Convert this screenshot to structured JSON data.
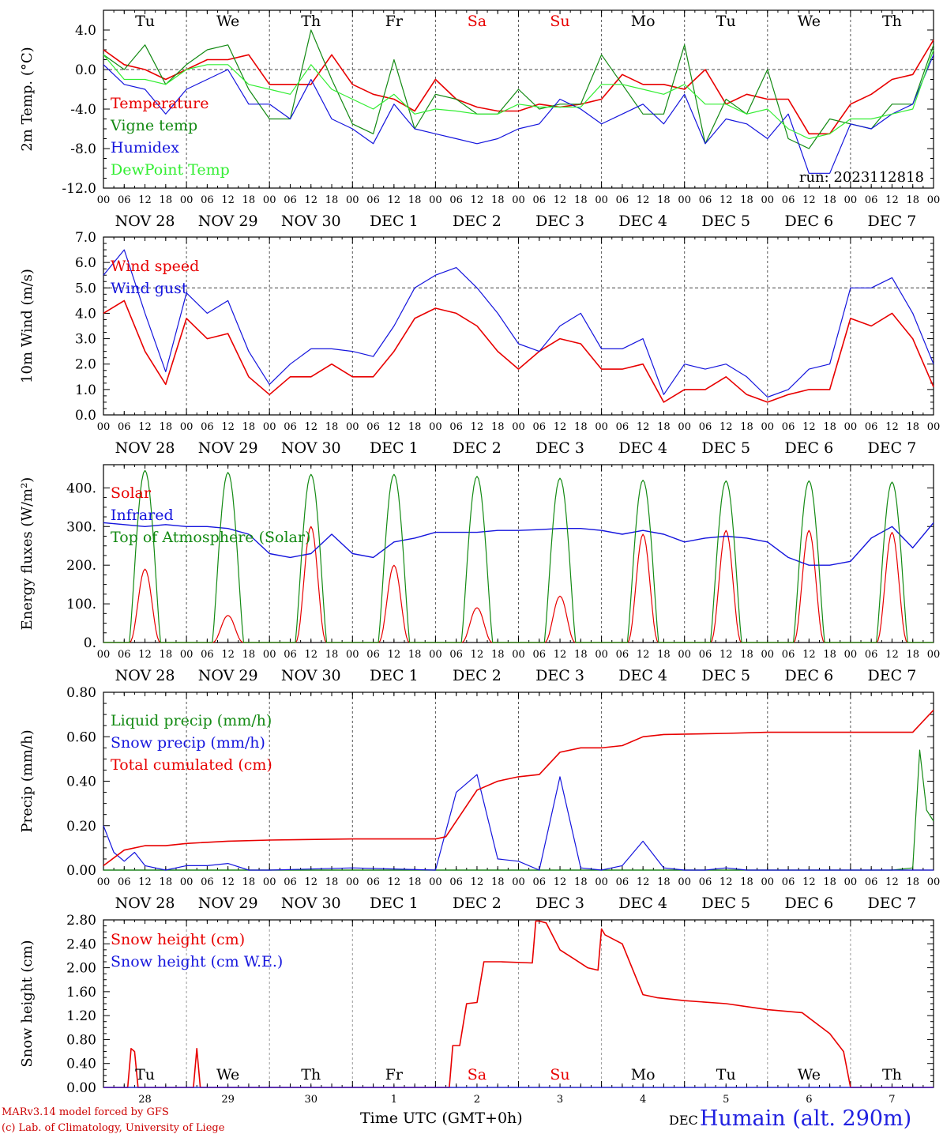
{
  "days_top": [
    "Tu",
    "We",
    "Th",
    "Fr",
    "Sa",
    "Su",
    "Mo",
    "Tu",
    "We",
    "Th"
  ],
  "weekend_days": [
    "Sa",
    "Su"
  ],
  "date_labels": [
    "NOV 28",
    "NOV 29",
    "NOV 30",
    "DEC  1",
    "DEC  2",
    "DEC  3",
    "DEC  4",
    "DEC  5",
    "DEC  6",
    "DEC  7"
  ],
  "hour_labels": [
    "00",
    "06",
    "12",
    "18"
  ],
  "hour_end_label": "00",
  "bottom_day_numbers": [
    "28",
    "29",
    "30",
    "1",
    "2",
    "3",
    "4",
    "5",
    "6",
    "7"
  ],
  "colors": {
    "red": "#e80000",
    "green": "#138a13",
    "blue": "#1515dd",
    "lightgreen": "#33ee33",
    "axis": "#000000"
  },
  "footer": {
    "model": "MARv3.14 model forced by GFS",
    "credit": "(c) Lab. of Climatology, University of Liege",
    "time_label": "Time UTC (GMT+0h)",
    "month": "DEC",
    "station": "Humain (alt. 290m)"
  },
  "chart_data": [
    {
      "type": "line",
      "ylabel": "2m Temp. (°C)",
      "ylim": [
        -12,
        6
      ],
      "yticks": [
        "4.0",
        "0.0",
        "-4.0",
        "-8.0",
        "-12.0"
      ],
      "ytick_values": [
        4,
        0,
        -4,
        -8,
        -12
      ],
      "ref_line": 0,
      "annotation": "run: 2023112818",
      "x_hours": [
        0,
        6,
        12,
        18,
        24,
        30,
        36,
        42,
        48,
        54,
        60,
        66,
        72,
        78,
        84,
        90,
        96,
        102,
        108,
        114,
        120,
        126,
        132,
        138,
        144,
        150,
        156,
        162,
        168,
        174,
        180,
        186,
        192,
        198,
        204,
        210,
        216,
        222,
        228,
        234,
        240
      ],
      "series": [
        {
          "name": "Temperature",
          "color": "red",
          "values": [
            2.0,
            0.5,
            0.0,
            -1.0,
            0.0,
            1.0,
            1.0,
            1.5,
            -1.5,
            -1.5,
            -1.5,
            1.5,
            -1.5,
            -2.5,
            -3.0,
            -4.2,
            -1.0,
            -3.0,
            -3.8,
            -4.2,
            -4.2,
            -3.5,
            -3.8,
            -3.5,
            -3.0,
            -0.5,
            -1.5,
            -1.5,
            -2.0,
            0.0,
            -3.5,
            -2.5,
            -3.0,
            -3.0,
            -6.5,
            -6.5,
            -3.5,
            -2.5,
            -1.0,
            -0.5,
            3.0
          ]
        },
        {
          "name": "Vigne temp",
          "color": "green",
          "values": [
            1.5,
            0.0,
            2.5,
            -1.5,
            0.5,
            2.0,
            2.5,
            -2.0,
            -5.0,
            -5.0,
            4.0,
            -1.0,
            -5.5,
            -6.5,
            1.0,
            -6.0,
            -2.5,
            -3.0,
            -4.5,
            -4.5,
            -2.0,
            -4.0,
            -3.5,
            -3.5,
            1.5,
            -1.5,
            -4.5,
            -4.5,
            2.5,
            -7.5,
            -3.0,
            -4.5,
            0.0,
            -7.0,
            -8.0,
            -5.0,
            -5.5,
            -6.0,
            -3.5,
            -3.5,
            2.5
          ]
        },
        {
          "name": "Humidex",
          "color": "blue",
          "values": [
            0.5,
            -1.5,
            -2.0,
            -4.5,
            -2.0,
            -1.0,
            0.0,
            -3.5,
            -3.5,
            -5.0,
            -1.0,
            -5.0,
            -6.0,
            -7.5,
            -3.5,
            -6.0,
            -6.5,
            -7.0,
            -7.5,
            -7.0,
            -6.0,
            -5.5,
            -3.0,
            -4.0,
            -5.5,
            -4.5,
            -3.5,
            -5.5,
            -2.5,
            -7.5,
            -5.0,
            -5.5,
            -7.0,
            -4.5,
            -10.5,
            -10.5,
            -5.5,
            -6.0,
            -4.5,
            -3.5,
            1.5
          ]
        },
        {
          "name": "DewPoint Temp",
          "color": "lightgreen",
          "values": [
            1.5,
            -1.0,
            -1.0,
            -1.5,
            0.0,
            0.5,
            0.5,
            -1.5,
            -2.0,
            -2.5,
            0.5,
            -2.0,
            -3.0,
            -4.0,
            -2.5,
            -4.5,
            -4.0,
            -4.2,
            -4.5,
            -4.5,
            -3.5,
            -3.8,
            -3.8,
            -3.8,
            -1.5,
            -1.5,
            -2.0,
            -2.5,
            -1.5,
            -3.5,
            -3.5,
            -4.5,
            -4.0,
            -6.0,
            -7.0,
            -6.5,
            -5.0,
            -5.0,
            -4.5,
            -4.0,
            2.0
          ]
        }
      ]
    },
    {
      "type": "line",
      "ylabel": "10m Wind (m/s)",
      "ylim": [
        0,
        7
      ],
      "yticks": [
        "7.0",
        "6.0",
        "5.0",
        "4.0",
        "3.0",
        "2.0",
        "1.0",
        "0.0"
      ],
      "ytick_values": [
        7,
        6,
        5,
        4,
        3,
        2,
        1,
        0
      ],
      "ref_line": 5,
      "x_hours": [
        0,
        6,
        12,
        18,
        24,
        30,
        36,
        42,
        48,
        54,
        60,
        66,
        72,
        78,
        84,
        90,
        96,
        102,
        108,
        114,
        120,
        126,
        132,
        138,
        144,
        150,
        156,
        162,
        168,
        174,
        180,
        186,
        192,
        198,
        204,
        210,
        216,
        222,
        228,
        234,
        240
      ],
      "series": [
        {
          "name": "Wind speed",
          "color": "red",
          "values": [
            4.0,
            4.5,
            2.5,
            1.2,
            3.8,
            3.0,
            3.2,
            1.5,
            0.8,
            1.5,
            1.5,
            2.0,
            1.5,
            1.5,
            2.5,
            3.8,
            4.2,
            4.0,
            3.5,
            2.5,
            1.8,
            2.5,
            3.0,
            2.8,
            1.8,
            1.8,
            2.0,
            0.5,
            1.0,
            1.0,
            1.5,
            0.8,
            0.5,
            0.8,
            1.0,
            1.0,
            3.8,
            3.5,
            4.0,
            3.0,
            1.1
          ]
        },
        {
          "name": "Wind gust",
          "color": "blue",
          "values": [
            5.5,
            6.5,
            4.0,
            1.7,
            4.8,
            4.0,
            4.5,
            2.5,
            1.2,
            2.0,
            2.6,
            2.6,
            2.5,
            2.3,
            3.5,
            5.0,
            5.5,
            5.8,
            5.0,
            4.0,
            2.8,
            2.5,
            3.5,
            4.0,
            2.6,
            2.6,
            3.0,
            0.8,
            2.0,
            1.8,
            2.0,
            1.5,
            0.7,
            1.0,
            1.8,
            2.0,
            5.0,
            5.0,
            5.4,
            4.0,
            2.0
          ]
        }
      ]
    },
    {
      "type": "line",
      "ylabel": "Energy fluxes (W/m²)",
      "ylim": [
        0,
        460
      ],
      "yticks": [
        "400.",
        "300.",
        "200.",
        "100.",
        "0."
      ],
      "ytick_values": [
        400,
        300,
        200,
        100,
        0
      ],
      "series": [
        {
          "name": "Solar",
          "color": "red",
          "day_peaks": [
            190,
            70,
            300,
            200,
            90,
            120,
            280,
            290,
            290,
            285
          ]
        },
        {
          "name": "Infrared",
          "color": "blue",
          "x_hours": [
            0,
            6,
            12,
            18,
            24,
            30,
            36,
            42,
            48,
            54,
            60,
            66,
            72,
            78,
            84,
            90,
            96,
            102,
            108,
            114,
            120,
            126,
            132,
            138,
            144,
            150,
            156,
            162,
            168,
            174,
            180,
            186,
            192,
            198,
            204,
            210,
            216,
            222,
            228,
            234,
            240
          ],
          "values": [
            310,
            305,
            300,
            305,
            300,
            300,
            295,
            280,
            230,
            220,
            230,
            280,
            230,
            220,
            260,
            270,
            285,
            285,
            285,
            290,
            290,
            292,
            295,
            295,
            290,
            280,
            290,
            280,
            260,
            270,
            275,
            270,
            260,
            220,
            200,
            200,
            210,
            270,
            300,
            245,
            310
          ]
        },
        {
          "name": "Top of Atmosphere (Solar)",
          "color": "green",
          "day_peaks": [
            445,
            440,
            435,
            435,
            430,
            425,
            420,
            418,
            418,
            415
          ]
        }
      ]
    },
    {
      "type": "line",
      "ylabel": "Precip (mm/h)",
      "ylim": [
        0,
        0.8
      ],
      "yticks": [
        "0.80",
        "0.60",
        "0.40",
        "0.20",
        "0.00"
      ],
      "ytick_values": [
        0.8,
        0.6,
        0.4,
        0.2,
        0.0
      ],
      "series": [
        {
          "name": "Liquid precip (mm/h)",
          "color": "green",
          "x_hours": [
            0,
            228,
            234,
            236,
            238,
            240
          ],
          "values": [
            0,
            0,
            0.01,
            0.54,
            0.27,
            0.22
          ]
        },
        {
          "name": "Snow precip (mm/h)",
          "color": "blue",
          "x_hours": [
            0,
            3,
            6,
            9,
            12,
            18,
            24,
            30,
            36,
            42,
            48,
            72,
            96,
            102,
            108,
            114,
            120,
            126,
            132,
            138,
            144,
            150,
            156,
            162,
            168,
            174,
            180,
            186,
            192,
            198,
            204,
            210,
            216,
            222,
            228,
            234,
            240
          ],
          "values": [
            0.2,
            0.08,
            0.04,
            0.08,
            0.02,
            0.0,
            0.02,
            0.02,
            0.03,
            0.0,
            0.0,
            0.01,
            0.0,
            0.35,
            0.43,
            0.05,
            0.04,
            0.0,
            0.42,
            0.01,
            0.0,
            0.02,
            0.13,
            0.01,
            0.0,
            0.0,
            0.01,
            0.0,
            0.0,
            0.0,
            0.0,
            0.0,
            0.0,
            0.0,
            0.0,
            0.0,
            0.0
          ]
        },
        {
          "name": "Total cumulated (cm)",
          "color": "red",
          "x_hours": [
            0,
            6,
            12,
            18,
            24,
            36,
            48,
            72,
            96,
            99,
            102,
            108,
            114,
            120,
            126,
            132,
            138,
            144,
            150,
            156,
            162,
            180,
            192,
            204,
            216,
            228,
            234,
            240
          ],
          "values": [
            0.02,
            0.09,
            0.11,
            0.11,
            0.12,
            0.13,
            0.135,
            0.14,
            0.14,
            0.15,
            0.22,
            0.36,
            0.4,
            0.42,
            0.43,
            0.53,
            0.55,
            0.55,
            0.56,
            0.6,
            0.61,
            0.615,
            0.62,
            0.62,
            0.62,
            0.62,
            0.62,
            0.72
          ]
        }
      ]
    },
    {
      "type": "area",
      "ylabel": "Snow height (cm)",
      "ylim": [
        0,
        2.8
      ],
      "yticks": [
        "2.80",
        "2.40",
        "2.00",
        "1.60",
        "1.20",
        "0.80",
        "0.40",
        "0.00"
      ],
      "ytick_values": [
        2.8,
        2.4,
        2.0,
        1.6,
        1.2,
        0.8,
        0.4,
        0.0
      ],
      "series": [
        {
          "name": "Snow height (cm)",
          "color": "red",
          "x_hours": [
            0,
            7,
            8,
            9,
            10,
            26,
            27,
            28,
            29,
            100,
            101,
            103,
            105,
            108,
            110,
            115,
            124,
            125,
            126,
            128,
            132,
            136,
            140,
            143,
            144,
            145,
            150,
            156,
            160,
            168,
            180,
            192,
            202,
            210,
            214,
            216,
            240
          ],
          "values": [
            0,
            0,
            0.65,
            0.6,
            0,
            0,
            0.65,
            0,
            0,
            0,
            0.7,
            0.7,
            1.4,
            1.42,
            2.1,
            2.1,
            2.08,
            2.78,
            2.78,
            2.75,
            2.3,
            2.15,
            2.0,
            1.96,
            2.65,
            2.55,
            2.4,
            1.55,
            1.5,
            1.45,
            1.4,
            1.3,
            1.25,
            0.9,
            0.6,
            0,
            0
          ]
        },
        {
          "name": "Snow height (cm W.E.)",
          "color": "blue",
          "x_hours": [
            0,
            240
          ],
          "values": [
            0,
            0
          ]
        }
      ],
      "days_bottom": [
        "Tu",
        "We",
        "Th",
        "Fr",
        "Sa",
        "Su",
        "Mo",
        "Tu",
        "We",
        "Th"
      ]
    }
  ]
}
